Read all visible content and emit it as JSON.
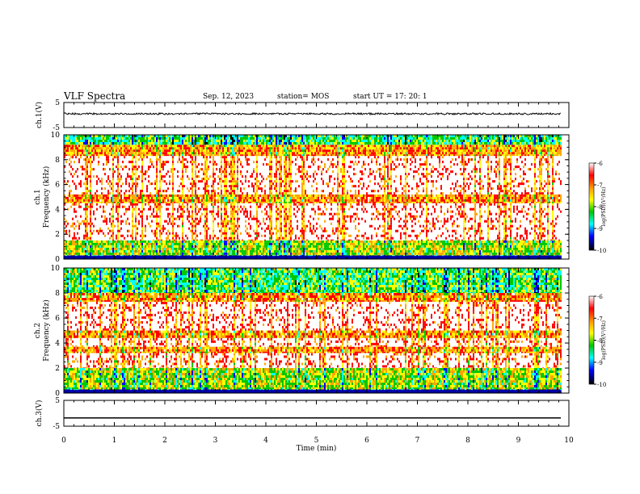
{
  "header": {
    "title": "VLF Spectra",
    "date": "Sep. 12, 2023",
    "station": "station= MOS",
    "start": "start  UT =   17: 20: 1"
  },
  "colorbar": {
    "label": "log(PSD)(V²/Hz)",
    "ticks": [
      "-6",
      "-7",
      "-8",
      "-9",
      "-10"
    ],
    "colors": [
      "#ffffff",
      "#ff0000",
      "#ffa500",
      "#ffff00",
      "#00c800",
      "#00ffff",
      "#0000ff",
      "#000000"
    ]
  },
  "chart_data": [
    {
      "type": "line",
      "ylabel": "ch.1(V)",
      "yticks": [
        "5",
        "-5"
      ],
      "ylim": [
        -5,
        5
      ],
      "x": [
        0,
        9.85
      ],
      "series": [
        {
          "values": [
            0.5,
            0.5
          ]
        }
      ],
      "note": "noisy trace near 0.5 V"
    },
    {
      "type": "heatmap",
      "ylabel": "ch.1 Frequency (kHz)",
      "yticks": [
        "0",
        "2",
        "4",
        "6",
        "8",
        "10"
      ],
      "ylim": [
        0,
        10
      ],
      "xlim": [
        0,
        9.85
      ],
      "zlim": [
        -10,
        -6
      ],
      "bands_khz": [
        {
          "range": [
            0.0,
            0.3
          ],
          "level": -9.5
        },
        {
          "range": [
            0.3,
            1.5
          ],
          "level": -7.8
        },
        {
          "range": [
            1.5,
            4.5
          ],
          "level": -6.3
        },
        {
          "range": [
            4.5,
            5.2
          ],
          "level": -7.0
        },
        {
          "range": [
            5.2,
            8.3
          ],
          "level": -6.3
        },
        {
          "range": [
            8.3,
            9.2
          ],
          "level": -7.1
        },
        {
          "range": [
            9.2,
            10.0
          ],
          "level": -8.3
        }
      ]
    },
    {
      "type": "heatmap",
      "ylabel": "ch.2 Frequency (kHz)",
      "yticks": [
        "0",
        "2",
        "4",
        "6",
        "8",
        "10"
      ],
      "ylim": [
        0,
        10
      ],
      "xlim": [
        0,
        9.85
      ],
      "zlim": [
        -10,
        -6
      ],
      "bands_khz": [
        {
          "range": [
            0.0,
            0.3
          ],
          "level": -9.5
        },
        {
          "range": [
            0.3,
            2.0
          ],
          "level": -7.8
        },
        {
          "range": [
            2.0,
            3.2
          ],
          "level": -6.4
        },
        {
          "range": [
            3.2,
            3.7
          ],
          "level": -7.0
        },
        {
          "range": [
            3.7,
            4.4
          ],
          "level": -6.4
        },
        {
          "range": [
            4.4,
            5.0
          ],
          "level": -7.0
        },
        {
          "range": [
            5.0,
            7.3
          ],
          "level": -6.2
        },
        {
          "range": [
            7.3,
            8.0
          ],
          "level": -7.0
        },
        {
          "range": [
            8.0,
            10.0
          ],
          "level": -8.2
        }
      ]
    },
    {
      "type": "line",
      "ylabel": "ch.3(V)",
      "yticks": [
        "5",
        "-5"
      ],
      "ylim": [
        -5,
        5
      ],
      "x": [
        0,
        9.85
      ],
      "series": [
        {
          "values": [
            -1.8,
            -1.8
          ]
        }
      ]
    }
  ],
  "xaxis": {
    "label": "Time  (min)",
    "xlim": [
      0,
      10
    ],
    "ticks": [
      "0",
      "1",
      "2",
      "3",
      "4",
      "5",
      "6",
      "7",
      "8",
      "9",
      "10"
    ]
  }
}
